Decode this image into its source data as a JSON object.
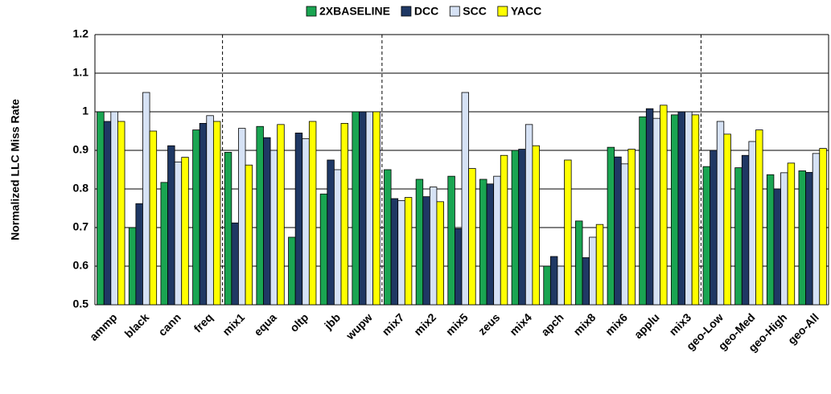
{
  "chart_data": {
    "type": "bar",
    "y_label": "Normalized LLC Miss Rate",
    "categories": [
      "ammp",
      "black",
      "cann",
      "freq",
      "mix1",
      "equa",
      "oltp",
      "jbb",
      "wupw",
      "mix7",
      "mix2",
      "mix5",
      "zeus",
      "mix4",
      "apch",
      "mix8",
      "mix6",
      "applu",
      "mix3",
      "geo-Low",
      "geo-Med",
      "geo-High",
      "geo-All"
    ],
    "series": [
      {
        "name": "2XBASELINE",
        "color": "#1aa552",
        "values": [
          1.0,
          0.7,
          0.817,
          0.953,
          0.895,
          0.962,
          0.675,
          0.787,
          1.0,
          0.85,
          0.825,
          0.833,
          0.825,
          0.9,
          0.6,
          0.717,
          0.908,
          0.987,
          0.992,
          0.858,
          0.855,
          0.837,
          0.847
        ]
      },
      {
        "name": "DCC",
        "color": "#1f3864",
        "values": [
          0.975,
          0.762,
          0.912,
          0.97,
          0.712,
          0.933,
          0.945,
          0.875,
          1.0,
          0.775,
          0.78,
          0.697,
          0.813,
          0.903,
          0.625,
          0.622,
          0.883,
          1.008,
          1.0,
          0.9,
          0.887,
          0.8,
          0.843
        ]
      },
      {
        "name": "SCC",
        "color": "#d6e2f5",
        "values": [
          1.0,
          1.05,
          0.87,
          0.99,
          0.957,
          0.9,
          0.93,
          0.85,
          1.0,
          0.77,
          0.805,
          1.05,
          0.833,
          0.967,
          0.6,
          0.675,
          0.865,
          0.983,
          1.0,
          0.975,
          0.923,
          0.842,
          0.892
        ]
      },
      {
        "name": "YACC",
        "color": "#ffff00",
        "values": [
          0.975,
          0.95,
          0.882,
          0.975,
          0.862,
          0.967,
          0.975,
          0.97,
          1.0,
          0.778,
          0.767,
          0.853,
          0.887,
          0.912,
          0.875,
          0.708,
          0.903,
          1.017,
          0.992,
          0.942,
          0.953,
          0.867,
          0.905
        ]
      }
    ],
    "ylim": [
      0.5,
      1.2
    ],
    "yticks": [
      0.5,
      0.6,
      0.7,
      0.8,
      0.9,
      1,
      1.1,
      1.2
    ],
    "grid": true
  }
}
